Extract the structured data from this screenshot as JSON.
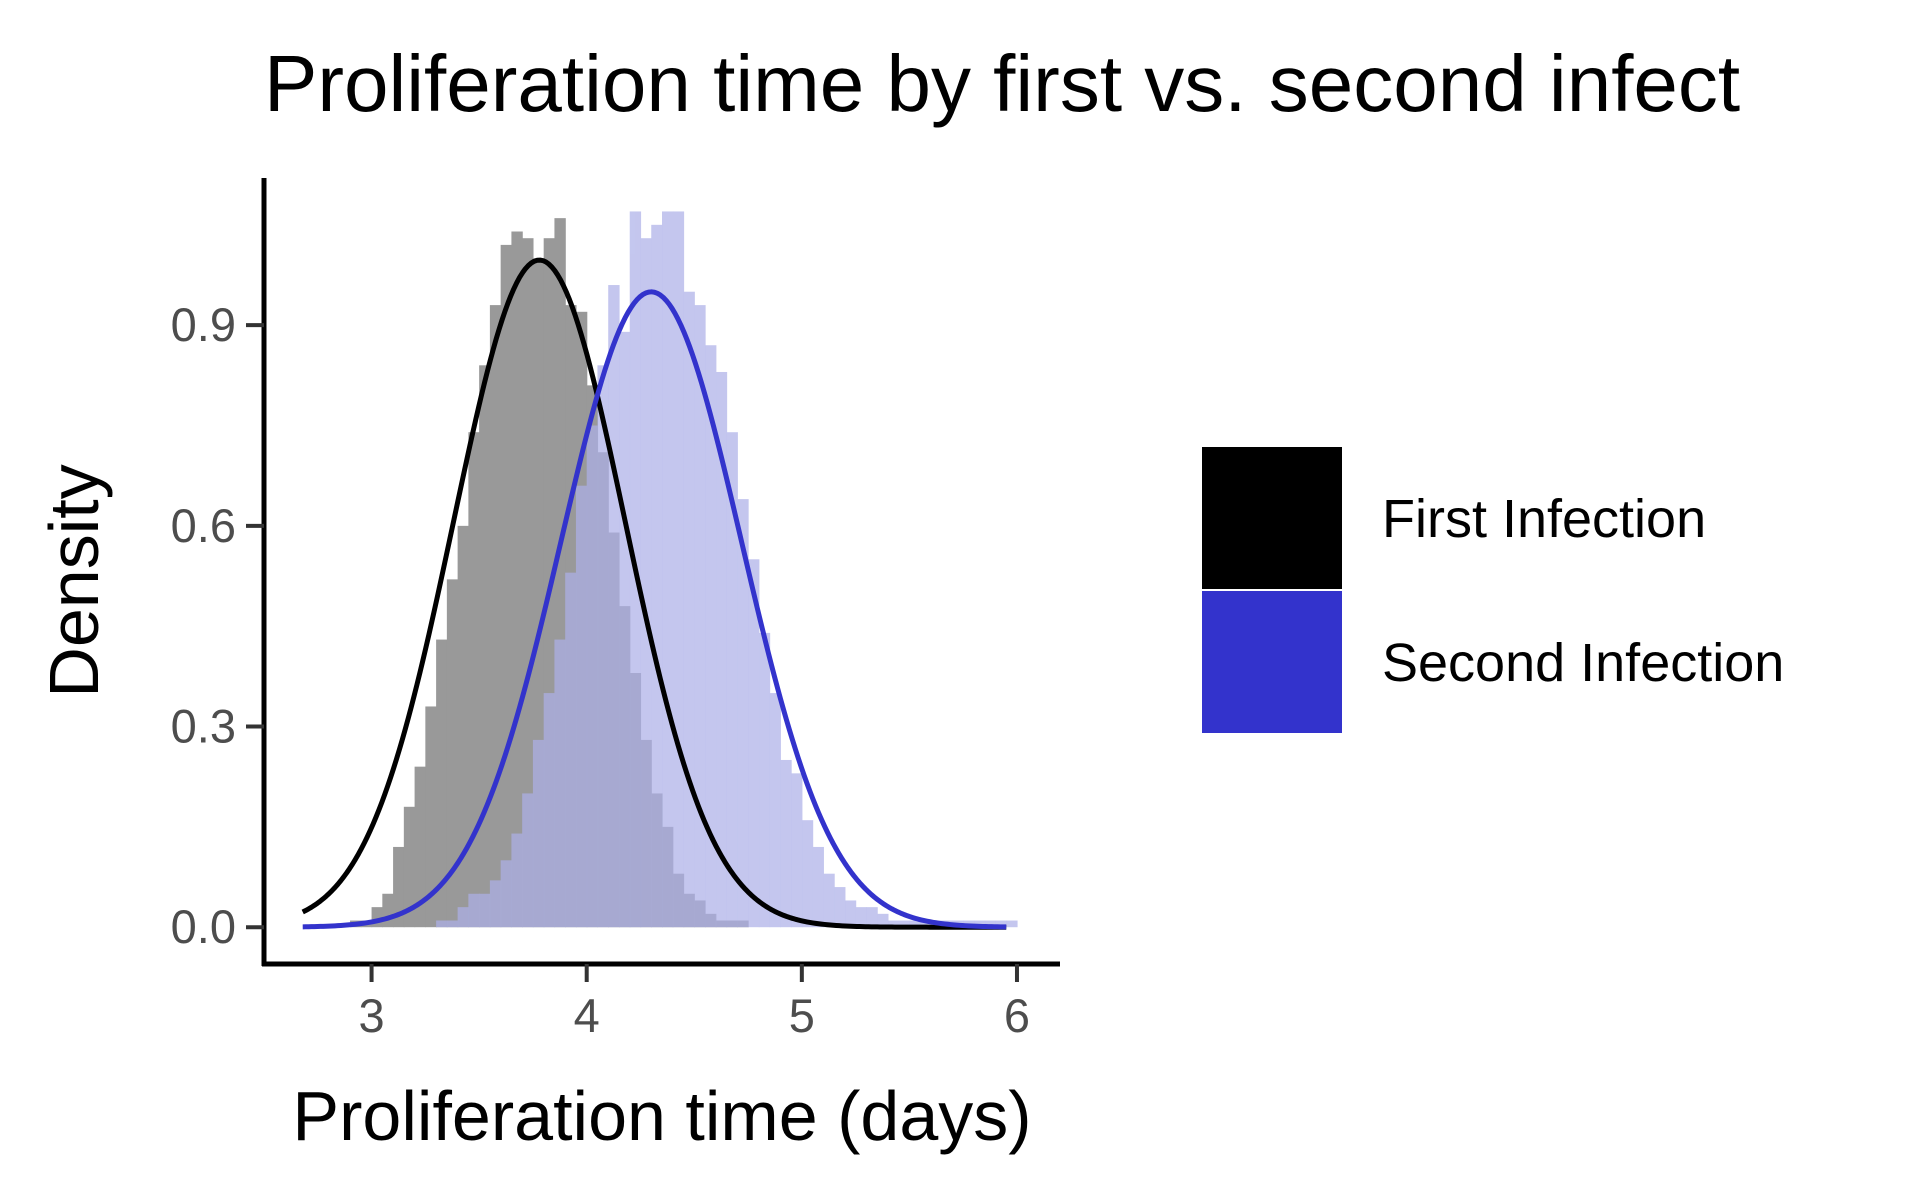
{
  "chart_data": {
    "type": "histogram+density",
    "title": "Proliferation time by first vs. second infect",
    "xlabel": "Proliferation time (days)",
    "ylabel": "Density",
    "xlim": [
      2.5,
      6.2
    ],
    "ylim": [
      -0.055,
      1.12
    ],
    "x_ticks": [
      3,
      4,
      5,
      6
    ],
    "y_ticks": [
      0.0,
      0.3,
      0.6,
      0.9
    ],
    "x_tick_labels": [
      "3",
      "4",
      "5",
      "6"
    ],
    "y_tick_labels": [
      "0.0",
      "0.3",
      "0.6",
      "0.9"
    ],
    "grid": false,
    "legend_position": "right",
    "series": [
      {
        "name": "First Infection",
        "color": "#000000",
        "hist_color": "#999999",
        "bin_width": 0.05,
        "bins_start": 2.9,
        "hist_values": [
          0.01,
          0.01,
          0.03,
          0.05,
          0.12,
          0.18,
          0.24,
          0.33,
          0.43,
          0.52,
          0.6,
          0.74,
          0.84,
          0.93,
          1.02,
          1.04,
          1.03,
          1.0,
          1.03,
          1.06,
          0.93,
          0.92,
          0.81,
          0.71,
          0.59,
          0.48,
          0.38,
          0.28,
          0.2,
          0.15,
          0.08,
          0.05,
          0.04,
          0.02,
          0.01,
          0.01,
          0.01
        ],
        "density_mean": 3.78,
        "density_sd": 0.4,
        "density_range": [
          2.68,
          5.95
        ]
      },
      {
        "name": "Second Infection",
        "color": "#3333CC",
        "hist_color": "#ADB0E8",
        "bin_width": 0.05,
        "bins_start": 3.3,
        "hist_values": [
          0.01,
          0.01,
          0.03,
          0.05,
          0.05,
          0.07,
          0.1,
          0.14,
          0.2,
          0.28,
          0.35,
          0.43,
          0.53,
          0.66,
          0.75,
          0.84,
          0.96,
          0.89,
          1.07,
          1.03,
          1.05,
          1.07,
          1.07,
          0.95,
          0.93,
          0.87,
          0.83,
          0.74,
          0.64,
          0.55,
          0.44,
          0.35,
          0.25,
          0.23,
          0.16,
          0.12,
          0.08,
          0.06,
          0.04,
          0.03,
          0.03,
          0.02,
          0.01,
          0.01,
          0.01,
          0.01,
          0.01,
          0.01,
          0.01,
          0.01,
          0.01,
          0.01,
          0.01,
          0.01
        ],
        "density_mean": 4.3,
        "density_sd": 0.42,
        "density_range": [
          2.68,
          5.95
        ]
      }
    ]
  }
}
